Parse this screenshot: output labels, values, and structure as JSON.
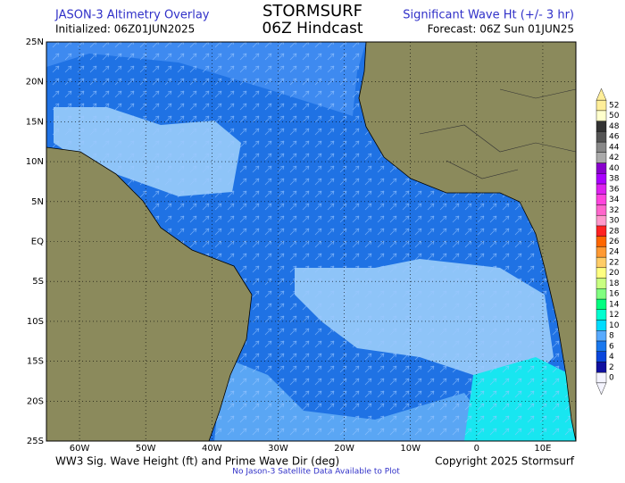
{
  "header": {
    "left_title": "JASON-3 Altimetry Overlay",
    "initialized": "Initialized: 06Z01JUN2025",
    "brand": "STORMSURF",
    "subtitle": "06Z Hindcast",
    "right_title": "Significant Wave Ht (+/- 3 hr)",
    "forecast": "Forecast: 06Z Sun 01JUN25"
  },
  "map": {
    "xlim": [
      -65,
      15
    ],
    "ylim": [
      -25,
      25
    ],
    "xticks": [
      {
        "value": -60,
        "label": "60W"
      },
      {
        "value": -50,
        "label": "50W"
      },
      {
        "value": -40,
        "label": "40W"
      },
      {
        "value": -30,
        "label": "30W"
      },
      {
        "value": -20,
        "label": "20W"
      },
      {
        "value": -10,
        "label": "10W"
      },
      0,
      {
        "value": 10,
        "label": "10E"
      }
    ],
    "yticks": [
      {
        "value": 25,
        "label": "25N"
      },
      {
        "value": 20,
        "label": "20N"
      },
      {
        "value": 15,
        "label": "15N"
      },
      {
        "value": 10,
        "label": "10N"
      },
      {
        "value": 5,
        "label": "5N"
      },
      {
        "value": 0,
        "label": "EQ"
      },
      {
        "value": -5,
        "label": "5S"
      },
      {
        "value": -10,
        "label": "10S"
      },
      {
        "value": -15,
        "label": "15S"
      },
      {
        "value": -20,
        "label": "20S"
      },
      {
        "value": -25,
        "label": "25S"
      }
    ]
  },
  "colorbar": {
    "levels": [
      0,
      2,
      4,
      6,
      8,
      10,
      12,
      14,
      16,
      18,
      20,
      22,
      24,
      26,
      28,
      30,
      32,
      34,
      36,
      38,
      40,
      42,
      44,
      46,
      48,
      50,
      52
    ],
    "colors": [
      "#f4f4ff",
      "#1010a0",
      "#0a46dc",
      "#1a78ee",
      "#58aaff",
      "#00dcff",
      "#00ffd0",
      "#00ff80",
      "#80ff80",
      "#c8ff80",
      "#ffff80",
      "#ffcc66",
      "#ff9933",
      "#ff6600",
      "#ff2222",
      "#ff99cc",
      "#ff66cc",
      "#ff44dd",
      "#dd22ee",
      "#aa00ff",
      "#8800cc",
      "#aaaaaa",
      "#888888",
      "#555555",
      "#333333",
      "#ffffcc",
      "#ffee99"
    ]
  },
  "footer": {
    "left": "WW3 Sig. Wave Height (ft) and Prime Wave Dir (deg)",
    "right": "Copyright 2025 Stormsurf",
    "note": "No Jason-3 Satellite Data Available to Plot"
  }
}
